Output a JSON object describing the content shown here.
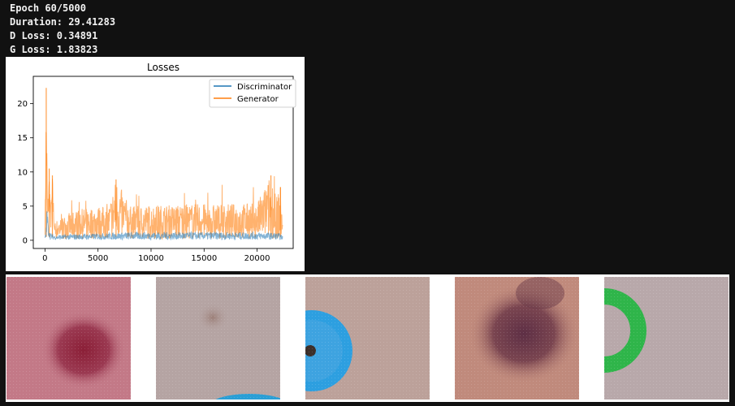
{
  "log": {
    "epoch": "Epoch 60/5000",
    "duration": "Duration: 29.41283",
    "d_loss": "D Loss: 0.34891",
    "g_loss": "G Loss: 1.83823"
  },
  "chart_data": {
    "type": "line",
    "title": "Losses",
    "xlabel": "",
    "ylabel": "",
    "xlim": [
      -1100,
      23400
    ],
    "ylim": [
      -1.2,
      24.0
    ],
    "x_ticks": [
      0,
      5000,
      10000,
      15000,
      20000
    ],
    "y_ticks": [
      0,
      5,
      10,
      15,
      20
    ],
    "legend_position": "top-right",
    "series": [
      {
        "name": "Discriminator",
        "color": "#1f77b4",
        "points": [
          [
            0,
            0.6
          ],
          [
            100,
            1.1
          ],
          [
            200,
            5.5
          ],
          [
            300,
            2.3
          ],
          [
            400,
            1.4
          ],
          [
            600,
            0.7
          ],
          [
            1000,
            0.5
          ],
          [
            2000,
            0.6
          ],
          [
            4000,
            0.7
          ],
          [
            6000,
            0.8
          ],
          [
            8000,
            0.9
          ],
          [
            10000,
            0.9
          ],
          [
            12000,
            0.9
          ],
          [
            14000,
            0.9
          ],
          [
            16000,
            0.9
          ],
          [
            18000,
            0.9
          ],
          [
            20000,
            0.9
          ],
          [
            22000,
            0.8
          ],
          [
            22400,
            0.5
          ]
        ]
      },
      {
        "name": "Generator",
        "color": "#ff7f0e",
        "points": [
          [
            0,
            2.0
          ],
          [
            120,
            22.3
          ],
          [
            250,
            5.0
          ],
          [
            400,
            10.5
          ],
          [
            550,
            4.0
          ],
          [
            700,
            9.5
          ],
          [
            900,
            2.6
          ],
          [
            2000,
            3.6
          ],
          [
            3000,
            4.3
          ],
          [
            4000,
            4.5
          ],
          [
            5000,
            4.8
          ],
          [
            6000,
            4.7
          ],
          [
            6700,
            8.9
          ],
          [
            8000,
            4.8
          ],
          [
            10000,
            5.0
          ],
          [
            12000,
            5.0
          ],
          [
            14000,
            5.2
          ],
          [
            16000,
            5.1
          ],
          [
            18000,
            5.2
          ],
          [
            20000,
            5.3
          ],
          [
            21300,
            9.5
          ],
          [
            21800,
            6.0
          ],
          [
            22200,
            7.8
          ],
          [
            22400,
            3.0
          ]
        ]
      }
    ]
  },
  "samples": [
    {
      "base": "#c37987",
      "spot": "#8b2a3f",
      "overlay": "none"
    },
    {
      "base": "#b5a4a3",
      "spot": "#9c7f78",
      "overlay": "blue-arc-bottom"
    },
    {
      "base": "#bca19a",
      "spot": "#3c2f2a",
      "overlay": "blue-circle-left"
    },
    {
      "base": "#c08a7c",
      "spot": "#6b3c4a",
      "overlay": "none"
    },
    {
      "base": "#b8a8aa",
      "spot": "#a8929a",
      "overlay": "green-ring-left"
    }
  ]
}
